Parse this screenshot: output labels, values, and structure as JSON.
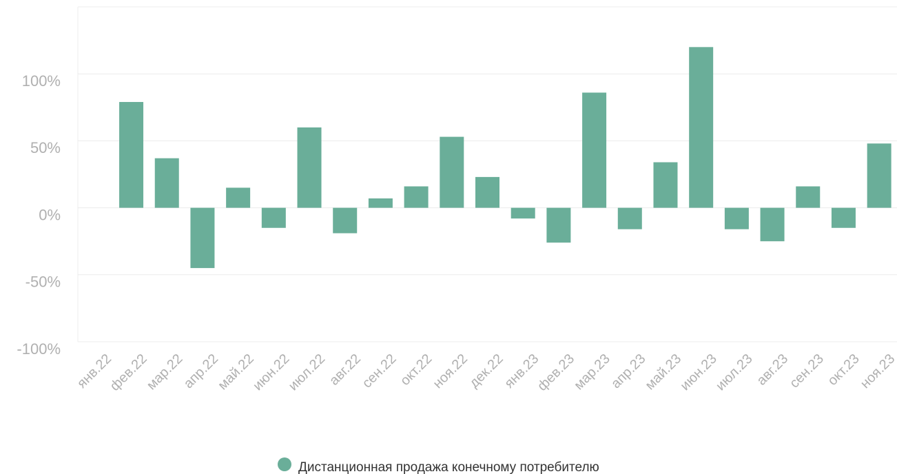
{
  "chart_data": {
    "type": "bar",
    "categories": [
      "янв.22",
      "фев.22",
      "мар.22",
      "апр.22",
      "май.22",
      "июн.22",
      "июл.22",
      "авг.22",
      "сен.22",
      "окт.22",
      "ноя.22",
      "дек.22",
      "янв.23",
      "фев.23",
      "мар.23",
      "апр.23",
      "май.23",
      "июн.23",
      "июл.23",
      "авг.23",
      "сен.23",
      "окт.23",
      "ноя.23"
    ],
    "series": [
      {
        "name": "Дистанционная продажа конечному потребителю",
        "color": "#6aae99",
        "values": [
          null,
          79,
          37,
          -45,
          15,
          -15,
          60,
          -19,
          7,
          16,
          53,
          23,
          -8,
          -26,
          86,
          -16,
          34,
          120,
          -16,
          -25,
          16,
          -15,
          48
        ]
      }
    ],
    "ylim": [
      -100,
      150
    ],
    "yticks": [
      {
        "value": -100,
        "label": "-100%"
      },
      {
        "value": -50,
        "label": "-50%"
      },
      {
        "value": 0,
        "label": "0%"
      },
      {
        "value": 50,
        "label": "50%"
      },
      {
        "value": 100,
        "label": "100%"
      }
    ],
    "grid": true,
    "legend": "bottom"
  }
}
